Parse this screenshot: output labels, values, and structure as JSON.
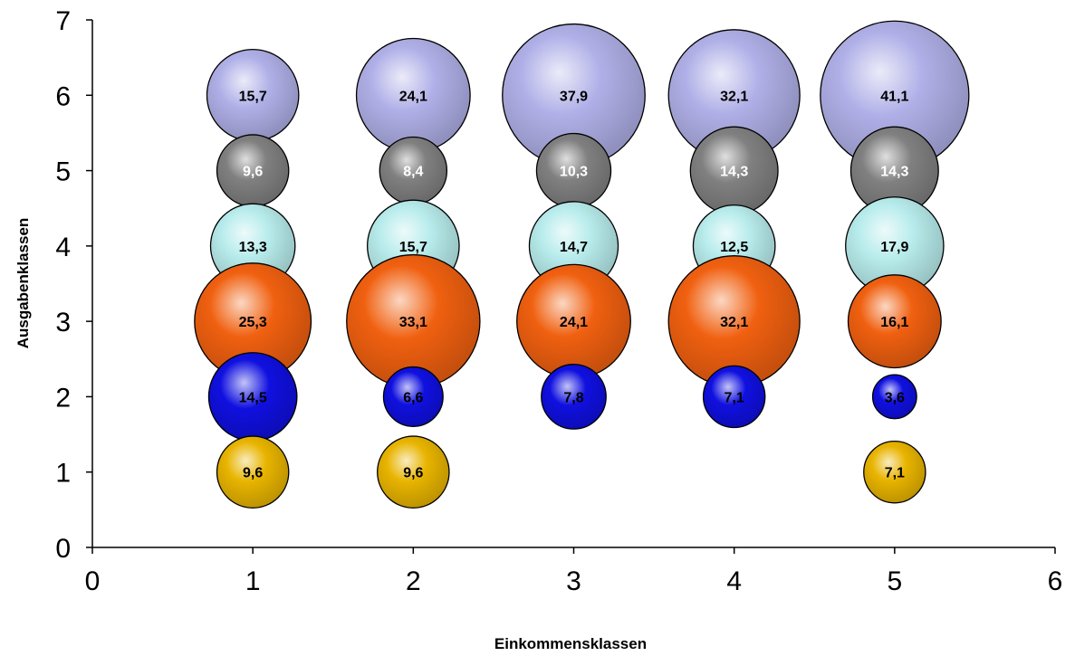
{
  "chart_data": {
    "type": "scatter",
    "subtype": "bubble",
    "title": "",
    "xlabel": "Einkommensklassen",
    "ylabel": "Ausgabenklassen",
    "xlim": [
      0,
      6
    ],
    "ylim": [
      0,
      7
    ],
    "x_ticks": [
      "0",
      "1",
      "2",
      "3",
      "4",
      "5",
      "6"
    ],
    "y_ticks": [
      "0",
      "1",
      "2",
      "3",
      "4",
      "5",
      "6",
      "7"
    ],
    "grid": false,
    "legend": "none",
    "series": [
      {
        "color": "#b0b0e8",
        "y": 6,
        "points": [
          {
            "x": 1,
            "size": 15.7,
            "label": "15,7"
          },
          {
            "x": 2,
            "size": 24.1,
            "label": "24,1"
          },
          {
            "x": 3,
            "size": 37.9,
            "label": "37,9"
          },
          {
            "x": 4,
            "size": 32.1,
            "label": "32,1"
          },
          {
            "x": 5,
            "size": 41.1,
            "label": "41,1"
          }
        ]
      },
      {
        "color": "#808080",
        "y": 5,
        "points": [
          {
            "x": 1,
            "size": 9.6,
            "label": "9,6"
          },
          {
            "x": 2,
            "size": 8.4,
            "label": "8,4"
          },
          {
            "x": 3,
            "size": 10.3,
            "label": "10,3"
          },
          {
            "x": 4,
            "size": 14.3,
            "label": "14,3"
          },
          {
            "x": 5,
            "size": 14.3,
            "label": "14,3"
          }
        ]
      },
      {
        "color": "#b8ecec",
        "y": 4,
        "points": [
          {
            "x": 1,
            "size": 13.3,
            "label": "13,3"
          },
          {
            "x": 2,
            "size": 15.7,
            "label": "15,7"
          },
          {
            "x": 3,
            "size": 14.7,
            "label": "14,7"
          },
          {
            "x": 4,
            "size": 12.5,
            "label": "12,5"
          },
          {
            "x": 5,
            "size": 17.9,
            "label": "17,9"
          }
        ]
      },
      {
        "color": "#f06010",
        "y": 3,
        "points": [
          {
            "x": 1,
            "size": 25.3,
            "label": "25,3"
          },
          {
            "x": 2,
            "size": 33.1,
            "label": "33,1"
          },
          {
            "x": 3,
            "size": 24.1,
            "label": "24,1"
          },
          {
            "x": 4,
            "size": 32.1,
            "label": "32,1"
          },
          {
            "x": 5,
            "size": 16.1,
            "label": "16,1"
          }
        ]
      },
      {
        "color": "#1010e0",
        "y": 2,
        "points": [
          {
            "x": 1,
            "size": 14.5,
            "label": "14,5"
          },
          {
            "x": 2,
            "size": 6.6,
            "label": "6,6"
          },
          {
            "x": 3,
            "size": 7.8,
            "label": "7,8"
          },
          {
            "x": 4,
            "size": 7.1,
            "label": "7,1"
          },
          {
            "x": 5,
            "size": 3.6,
            "label": "3,6"
          }
        ]
      },
      {
        "color": "#e8b400",
        "y": 1,
        "points": [
          {
            "x": 1,
            "size": 9.6,
            "label": "9,6"
          },
          {
            "x": 2,
            "size": 9.6,
            "label": "9,6"
          },
          {
            "x": 5,
            "size": 7.1,
            "label": "7,1"
          }
        ]
      }
    ]
  }
}
